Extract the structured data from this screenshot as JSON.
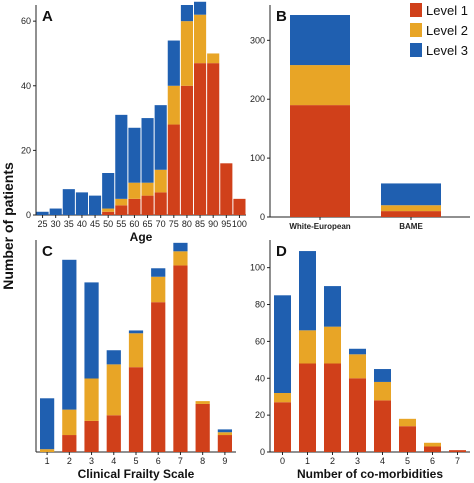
{
  "figure": {
    "ylabel": "Number of patients",
    "colors": {
      "level1": "#d0401a",
      "level2": "#e8a526",
      "level3": "#1f5fb0"
    },
    "legend": {
      "placement": "top-right",
      "items": [
        {
          "label": "Level 1",
          "color": "#d0401a"
        },
        {
          "label": "Level 2",
          "color": "#e8a526"
        },
        {
          "label": "Level 3",
          "color": "#1f5fb0"
        }
      ]
    }
  },
  "chart_data": [
    {
      "panel": "A",
      "type": "bar",
      "stacked": true,
      "xlabel": "Age",
      "ylabel": "",
      "categories": [
        "25",
        "30",
        "35",
        "40",
        "45",
        "50",
        "55",
        "60",
        "65",
        "70",
        "75",
        "80",
        "85",
        "90",
        "95",
        "100"
      ],
      "ylim": [
        0,
        65
      ],
      "yticks": [
        0,
        20,
        40,
        60
      ],
      "series": [
        {
          "name": "Level 1",
          "values": [
            0,
            0,
            0,
            0,
            0,
            1,
            3,
            5,
            6,
            7,
            28,
            40,
            47,
            47,
            16,
            5
          ]
        },
        {
          "name": "Level 2",
          "values": [
            0,
            0,
            0,
            0,
            0,
            1,
            2,
            5,
            4,
            7,
            12,
            20,
            15,
            3,
            0,
            0
          ]
        },
        {
          "name": "Level 3",
          "values": [
            1,
            2,
            8,
            7,
            6,
            11,
            26,
            17,
            20,
            20,
            14,
            5,
            4,
            0,
            0,
            0
          ]
        }
      ]
    },
    {
      "panel": "B",
      "type": "bar",
      "stacked": true,
      "xlabel": "",
      "ylabel": "",
      "categories": [
        "White-European",
        "BAME"
      ],
      "ylim": [
        0,
        360
      ],
      "yticks": [
        0,
        100,
        200,
        300
      ],
      "series": [
        {
          "name": "Level 1",
          "values": [
            190,
            10
          ]
        },
        {
          "name": "Level 2",
          "values": [
            68,
            10
          ]
        },
        {
          "name": "Level 3",
          "values": [
            85,
            37
          ]
        }
      ]
    },
    {
      "panel": "C",
      "type": "bar",
      "stacked": true,
      "xlabel": "Clinical Frailty Scale",
      "ylabel": "",
      "categories": [
        "1",
        "2",
        "3",
        "4",
        "5",
        "6",
        "7",
        "8",
        "9"
      ],
      "ylim": [
        0,
        75
      ],
      "yticks": [],
      "series": [
        {
          "name": "Level 1",
          "values": [
            0,
            6,
            11,
            13,
            30,
            53,
            66,
            17,
            6
          ]
        },
        {
          "name": "Level 2",
          "values": [
            1,
            9,
            15,
            18,
            12,
            9,
            5,
            1,
            1
          ]
        },
        {
          "name": "Level 3",
          "values": [
            18,
            53,
            34,
            5,
            1,
            3,
            3,
            0,
            1
          ]
        }
      ]
    },
    {
      "panel": "D",
      "type": "bar",
      "stacked": true,
      "xlabel": "Number of co-morbidities",
      "ylabel": "",
      "categories": [
        "0",
        "1",
        "2",
        "3",
        "4",
        "5",
        "6",
        "7"
      ],
      "ylim": [
        0,
        115
      ],
      "yticks": [
        0,
        20,
        40,
        60,
        80,
        100
      ],
      "series": [
        {
          "name": "Level 1",
          "values": [
            27,
            48,
            48,
            40,
            28,
            14,
            3,
            1
          ]
        },
        {
          "name": "Level 2",
          "values": [
            5,
            18,
            20,
            13,
            10,
            4,
            2,
            0
          ]
        },
        {
          "name": "Level 3",
          "values": [
            53,
            43,
            22,
            3,
            7,
            0,
            0,
            0
          ]
        }
      ]
    }
  ]
}
